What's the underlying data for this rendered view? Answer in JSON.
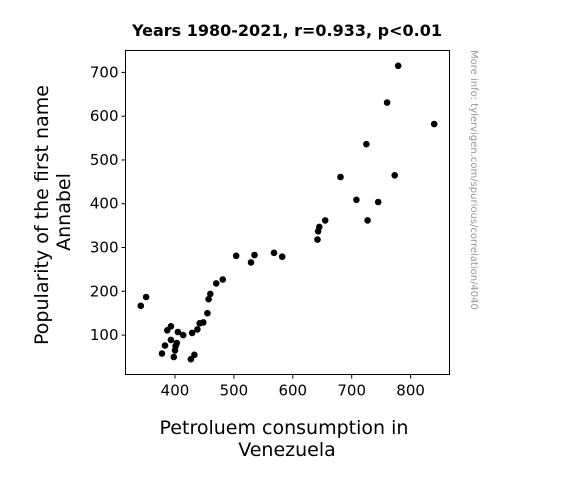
{
  "chart_data": {
    "type": "scatter",
    "title": "Years 1980-2021, r=0.933, p<0.01",
    "xlabel": [
      "Petroluem consumption in",
      "Venezuela"
    ],
    "ylabel": [
      "Popularity of the first name",
      "Annabel"
    ],
    "watermark": "More info: tylervigen.com/spurious/correlation/4040",
    "xlim": [
      316,
      866
    ],
    "ylim": [
      10,
      750
    ],
    "xticks": [
      400,
      500,
      600,
      700,
      800
    ],
    "yticks": [
      100,
      200,
      300,
      400,
      500,
      600,
      700
    ],
    "grid": false,
    "point_color": "#000000",
    "points": [
      [
        342,
        167
      ],
      [
        351,
        187
      ],
      [
        378,
        58
      ],
      [
        383,
        76
      ],
      [
        387,
        111
      ],
      [
        393,
        120
      ],
      [
        393,
        89
      ],
      [
        398,
        50
      ],
      [
        400,
        65
      ],
      [
        401,
        75
      ],
      [
        403,
        82
      ],
      [
        405,
        107
      ],
      [
        414,
        100
      ],
      [
        427,
        45
      ],
      [
        429,
        105
      ],
      [
        433,
        55
      ],
      [
        438,
        113
      ],
      [
        442,
        127
      ],
      [
        448,
        129
      ],
      [
        455,
        150
      ],
      [
        457,
        182
      ],
      [
        460,
        194
      ],
      [
        470,
        218
      ],
      [
        481,
        227
      ],
      [
        504,
        281
      ],
      [
        529,
        266
      ],
      [
        535,
        283
      ],
      [
        568,
        288
      ],
      [
        582,
        279
      ],
      [
        642,
        318
      ],
      [
        643,
        337
      ],
      [
        645,
        347
      ],
      [
        655,
        362
      ],
      [
        681,
        461
      ],
      [
        708,
        409
      ],
      [
        725,
        536
      ],
      [
        727,
        362
      ],
      [
        745,
        404
      ],
      [
        760,
        631
      ],
      [
        773,
        465
      ],
      [
        779,
        715
      ],
      [
        840,
        582
      ]
    ]
  }
}
